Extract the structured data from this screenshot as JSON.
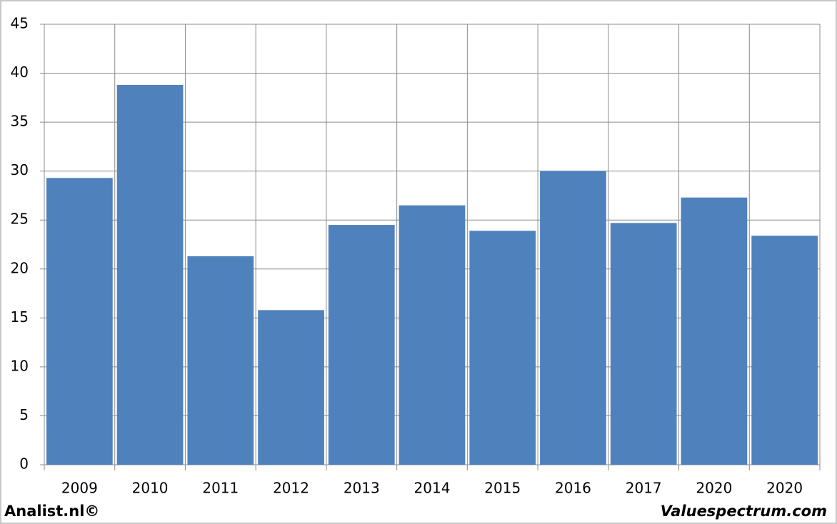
{
  "chart_data": {
    "type": "bar",
    "categories": [
      "2009",
      "2010",
      "2011",
      "2012",
      "2013",
      "2014",
      "2015",
      "2016",
      "2017",
      "2020",
      "2020"
    ],
    "values": [
      29.3,
      38.8,
      21.3,
      15.8,
      24.5,
      26.5,
      23.9,
      30.0,
      24.7,
      27.3,
      23.4
    ],
    "color": "#4f81bd",
    "ylim": [
      0,
      45
    ],
    "yticks": [
      0,
      5,
      10,
      15,
      20,
      25,
      30,
      35,
      40,
      45
    ],
    "grid": true,
    "source_left": "Analist.nl©",
    "source_right": "Valuespectrum.com"
  }
}
